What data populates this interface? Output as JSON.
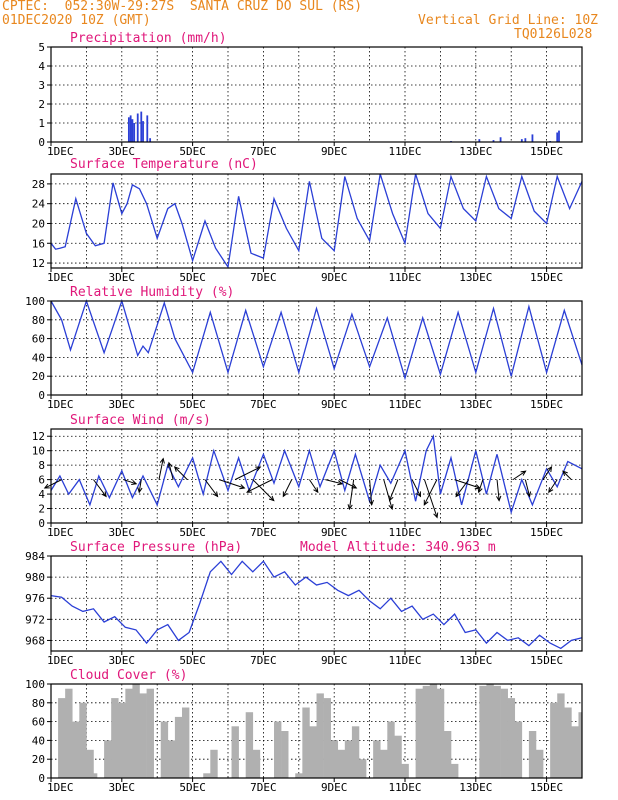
{
  "header": {
    "source": "CPTEC:",
    "coords": "052:30W-29:27S",
    "station": "SANTA CRUZ DO SUL (RS)",
    "datetime": "01DEC2020 10Z (GMT)",
    "grid_note": "Vertical Grid Line: 10Z",
    "model_code": "TQ0126L028"
  },
  "colors": {
    "header": "#e8871e",
    "title": "#e0177a",
    "line": "#2b3fd6",
    "bar": "#2b3fd6",
    "cloud": "#b0b0b0",
    "arrow": "#000000"
  },
  "x_ticks": [
    "1DEC",
    "3DEC",
    "5DEC",
    "7DEC",
    "9DEC",
    "11DEC",
    "13DEC",
    "15DEC"
  ],
  "x_tick_days": [
    0,
    2,
    4,
    6,
    8,
    10,
    12,
    14
  ],
  "chart_data": [
    {
      "type": "bar",
      "title": "Precipitation (mm/h)",
      "ylim": [
        0,
        5
      ],
      "yticks": [
        0,
        1,
        2,
        3,
        4,
        5
      ],
      "x_unit": "days since 01DEC2020 10Z",
      "x": [
        2.2,
        2.25,
        2.3,
        2.35,
        2.45,
        2.55,
        2.6,
        2.72,
        2.8,
        11.3,
        12.1,
        12.5,
        12.7,
        13.3,
        13.4,
        13.6,
        14.1,
        14.3,
        14.35
      ],
      "values": [
        1.3,
        1.4,
        1.2,
        1.0,
        1.5,
        1.6,
        1.1,
        1.4,
        0.2,
        0.05,
        0.15,
        0.1,
        0.25,
        0.15,
        0.2,
        0.4,
        0.05,
        0.5,
        0.6
      ]
    },
    {
      "type": "line",
      "title": "Surface Temperature (nC)",
      "ylim": [
        11,
        30
      ],
      "yticks": [
        12,
        16,
        20,
        24,
        28
      ],
      "x_unit": "days since 01DEC2020 10Z",
      "x": [
        0,
        0.13,
        0.25,
        0.4,
        0.7,
        1,
        1.25,
        1.5,
        1.75,
        2,
        2.15,
        2.3,
        2.5,
        2.7,
        3,
        3.3,
        3.5,
        3.7,
        4,
        4.35,
        4.65,
        5,
        5.3,
        5.65,
        6,
        6.3,
        6.65,
        7,
        7.3,
        7.65,
        8,
        8.3,
        8.65,
        9,
        9.3,
        9.65,
        10,
        10.3,
        10.65,
        11,
        11.3,
        11.65,
        12,
        12.3,
        12.65,
        13,
        13.3,
        13.65,
        14,
        14.3,
        14.65,
        15
      ],
      "values": [
        16,
        14.8,
        15,
        15.3,
        25,
        18,
        15.5,
        16,
        28.2,
        22,
        24,
        27.8,
        27,
        24,
        17,
        23,
        24,
        20,
        12.5,
        20.5,
        15,
        11.2,
        25.5,
        14,
        13,
        25,
        19,
        14.5,
        28.5,
        17,
        14.5,
        29.5,
        21,
        16.5,
        30,
        22,
        16,
        30,
        22,
        19,
        29.5,
        23,
        20.5,
        29.5,
        23,
        21,
        29.5,
        22.5,
        20,
        29.5,
        23,
        28.5
      ]
    },
    {
      "type": "line",
      "title": "Relative Humidity (%)",
      "ylim": [
        0,
        100
      ],
      "yticks": [
        0,
        20,
        40,
        60,
        80,
        100
      ],
      "x_unit": "days since 01DEC2020 10Z",
      "x": [
        0,
        0.3,
        0.55,
        1,
        1.5,
        2,
        2.45,
        2.6,
        2.75,
        3.2,
        3.5,
        4,
        4.5,
        5,
        5.5,
        6,
        6.5,
        7,
        7.5,
        8,
        8.5,
        9,
        9.5,
        10,
        10.5,
        11,
        11.5,
        12,
        12.5,
        13,
        13.5,
        14,
        14.5,
        15
      ],
      "values": [
        100,
        80,
        48,
        100,
        45,
        100,
        42,
        52,
        45,
        98,
        60,
        24,
        88,
        24,
        90,
        30,
        88,
        24,
        92,
        28,
        86,
        30,
        82,
        18,
        82,
        22,
        88,
        24,
        92,
        20,
        94,
        24,
        90,
        32
      ]
    },
    {
      "type": "line",
      "title": "Surface Wind (m/s)",
      "ylim": [
        0,
        13
      ],
      "yticks": [
        0,
        2,
        4,
        6,
        8,
        10,
        12
      ],
      "x_unit": "days since 01DEC2020 10Z",
      "x": [
        0,
        0.25,
        0.5,
        0.8,
        1.1,
        1.35,
        1.65,
        2,
        2.3,
        2.6,
        3,
        3.3,
        3.6,
        4,
        4.3,
        4.6,
        5,
        5.3,
        5.6,
        6,
        6.3,
        6.6,
        7,
        7.3,
        7.6,
        8,
        8.3,
        8.6,
        9,
        9.3,
        9.6,
        10,
        10.3,
        10.6,
        10.8,
        11,
        11.3,
        11.6,
        12,
        12.3,
        12.6,
        13,
        13.3,
        13.6,
        14,
        14.3,
        14.6,
        15
      ],
      "values": [
        4.5,
        6.5,
        4,
        6,
        2.5,
        6.5,
        3.5,
        7.2,
        3.5,
        6.5,
        2.5,
        8,
        5,
        9,
        4,
        10,
        4.5,
        9,
        4.5,
        9.5,
        5.5,
        10,
        5,
        10,
        5,
        10,
        4.5,
        9.5,
        3,
        8,
        5.5,
        10,
        3,
        10,
        12,
        4,
        9,
        2.5,
        10,
        4,
        9.5,
        1.5,
        6,
        2.5,
        7.5,
        5,
        8.5,
        7.5
      ]
    },
    {
      "type": "line",
      "title": "Surface Pressure (hPa)",
      "annotation": "Model Altitude: 340.963 m",
      "ylim": [
        966,
        984
      ],
      "yticks": [
        968,
        972,
        976,
        980,
        984
      ],
      "x_unit": "days since 01DEC2020 10Z",
      "x": [
        0,
        0.3,
        0.6,
        0.9,
        1.2,
        1.5,
        1.8,
        2.1,
        2.4,
        2.7,
        3,
        3.3,
        3.6,
        3.9,
        4.2,
        4.5,
        4.8,
        5.1,
        5.4,
        5.7,
        6,
        6.3,
        6.6,
        6.9,
        7.2,
        7.5,
        7.8,
        8.1,
        8.4,
        8.7,
        9,
        9.3,
        9.6,
        9.9,
        10.2,
        10.5,
        10.8,
        11.1,
        11.4,
        11.7,
        12,
        12.3,
        12.6,
        12.9,
        13.2,
        13.5,
        13.8,
        14.1,
        14.4,
        14.7,
        15
      ],
      "values": [
        976.5,
        976.2,
        974.5,
        973.5,
        974,
        971.5,
        972.5,
        970.5,
        970,
        967.5,
        970,
        971,
        968,
        969.5,
        975,
        981,
        983,
        980.5,
        983,
        981,
        983,
        980,
        981,
        978.5,
        980,
        978.5,
        979,
        977.5,
        976.5,
        977.5,
        975.5,
        974,
        976,
        973.5,
        974.5,
        972,
        973,
        971,
        973,
        969.5,
        970,
        967.5,
        969.5,
        968,
        968.5,
        967,
        969,
        967.5,
        966.5,
        968,
        968.5
      ]
    },
    {
      "type": "area",
      "title": "Cloud Cover (%)",
      "ylim": [
        0,
        100
      ],
      "yticks": [
        0,
        20,
        40,
        60,
        80,
        100
      ],
      "x_unit": "days since 01DEC2020 10Z",
      "x": [
        0,
        0.2,
        0.4,
        0.6,
        0.8,
        1,
        1.2,
        1.3,
        1.5,
        1.7,
        1.9,
        2.1,
        2.3,
        2.5,
        2.7,
        2.9,
        3.1,
        3.3,
        3.5,
        3.7,
        3.9,
        4.1,
        4.3,
        4.5,
        4.7,
        4.9,
        5.1,
        5.3,
        5.5,
        5.7,
        5.9,
        6.1,
        6.3,
        6.5,
        6.7,
        6.9,
        7.1,
        7.3,
        7.5,
        7.7,
        7.9,
        8.1,
        8.3,
        8.5,
        8.7,
        8.9,
        9.1,
        9.3,
        9.5,
        9.7,
        9.9,
        10.1,
        10.3,
        10.5,
        10.7,
        10.9,
        11.1,
        11.3,
        11.5,
        11.7,
        11.9,
        12.1,
        12.3,
        12.5,
        12.7,
        12.9,
        13.1,
        13.3,
        13.5,
        13.7,
        13.9,
        14.1,
        14.3,
        14.5,
        14.7,
        14.9,
        15
      ],
      "values": [
        0,
        85,
        95,
        60,
        80,
        30,
        5,
        0,
        40,
        85,
        80,
        95,
        100,
        90,
        95,
        0,
        60,
        40,
        65,
        75,
        0,
        0,
        5,
        30,
        0,
        0,
        55,
        0,
        70,
        30,
        0,
        0,
        60,
        50,
        0,
        5,
        75,
        55,
        90,
        85,
        40,
        30,
        40,
        55,
        20,
        0,
        40,
        30,
        60,
        45,
        15,
        0,
        95,
        98,
        100,
        95,
        50,
        15,
        0,
        0,
        0,
        98,
        100,
        98,
        95,
        85,
        60,
        0,
        50,
        30,
        0,
        80,
        90,
        75,
        55,
        70,
        20
      ]
    }
  ],
  "wind_vectors": {
    "x": [
      0.3,
      1.2,
      2.05,
      2.55,
      3.05,
      3.45,
      3.85,
      4.35,
      4.75,
      5.2,
      5.7,
      6.25,
      6.8,
      7.3,
      7.75,
      8.15,
      8.55,
      9.0,
      9.4,
      9.8,
      10.2,
      10.55,
      10.9,
      11.4,
      11.8,
      12.2,
      12.6,
      13.05,
      13.4,
      13.9,
      14.3,
      14.7
    ],
    "u": [
      -4,
      3,
      3,
      -0.5,
      1,
      -1,
      -3,
      3,
      6,
      6,
      5,
      -6,
      -2,
      2,
      4,
      4,
      -1,
      0.5,
      2,
      -2,
      2,
      3,
      -3,
      6,
      -3,
      -1,
      0.5,
      3,
      1,
      2,
      -2,
      -2
    ],
    "v": [
      -2,
      -4,
      -1,
      -3,
      5,
      4,
      3,
      -4,
      -2,
      3,
      -5,
      -3,
      -4,
      -3,
      -1,
      -2,
      -7,
      -6,
      -7,
      -5,
      -4,
      -9,
      -6,
      -2,
      -4,
      -3,
      -5,
      2,
      -4,
      3,
      -3,
      2
    ]
  }
}
